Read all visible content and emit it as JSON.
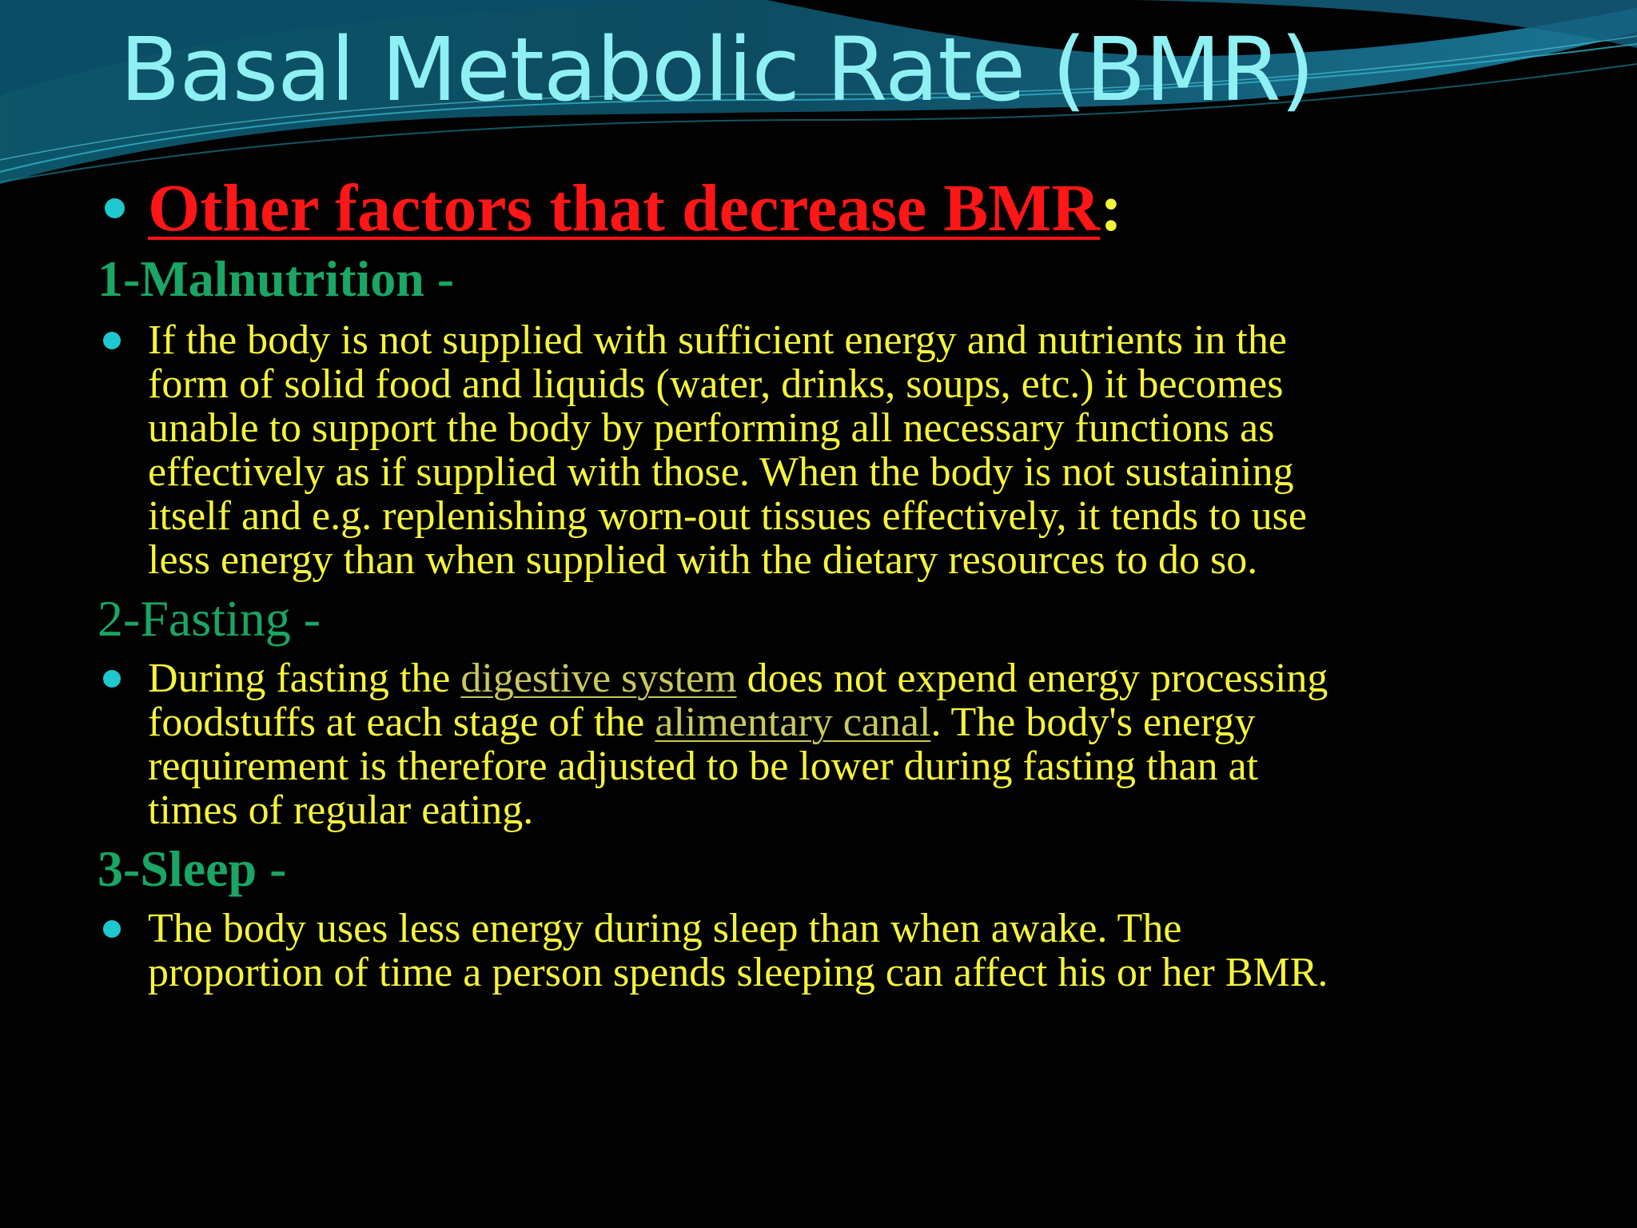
{
  "slide": {
    "title": "Basal Metabolic Rate (BMR)",
    "heading": {
      "text": "Other factors that decrease BMR",
      "colon": ":"
    },
    "sections": [
      {
        "subheading": "1-Malnutrition -",
        "lines": [
          "If the body is not supplied with sufficient energy and nutrients in the",
          "form of solid food and liquids (water, drinks, soups, etc.) it becomes",
          "unable to support the body by performing all necessary functions as",
          "effectively as if supplied with those. When the body is not sustaining",
          "itself and e.g. replenishing worn-out tissues effectively, it tends to use",
          "less energy than when supplied with the dietary resources to do so."
        ]
      },
      {
        "subheading": "2-Fasting -",
        "line1_before": "During fasting the ",
        "link1": "digestive system",
        "line1_after": " does not expend energy processing",
        "line2_before": "foodstuffs at each stage of the ",
        "link2": "alimentary canal",
        "line2_after": ". The body's energy",
        "line3": "requirement is therefore adjusted to be lower during fasting than at",
        "line4": "times of regular eating."
      },
      {
        "subheading": "3-Sleep -",
        "lines": [
          "The body uses less energy during sleep than when awake. The",
          "proportion of time a person spends sleeping can affect his or her BMR."
        ]
      }
    ],
    "colors": {
      "background": "#020202",
      "title": "#8ff0f4",
      "heading": "#ff1616",
      "subheading": "#1aa664",
      "body": "#f4f43c",
      "bullet": "#1fc8cf",
      "link": "#c9c95e"
    }
  }
}
